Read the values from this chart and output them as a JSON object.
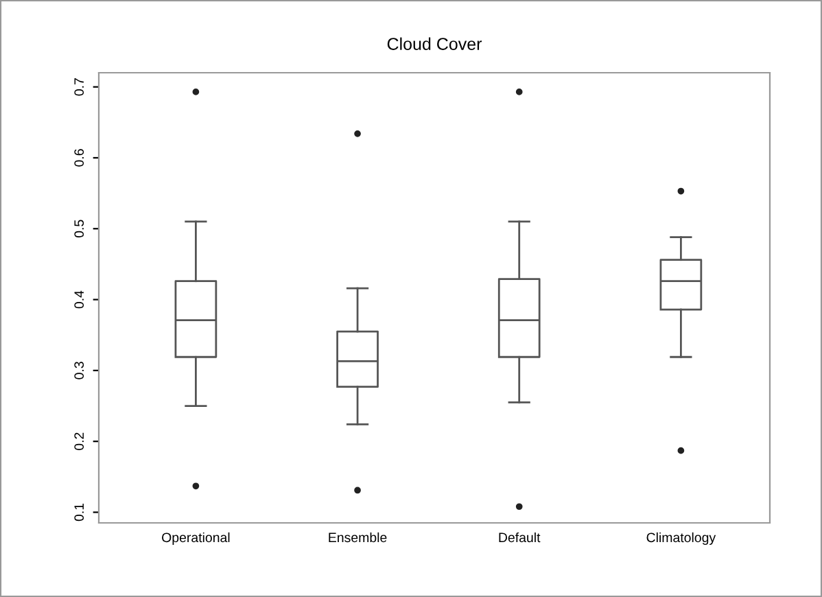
{
  "chart_data": {
    "type": "box",
    "title": "Cloud Cover",
    "categories": [
      "Operational",
      "Ensemble",
      "Default",
      "Climatology"
    ],
    "boxes": [
      {
        "low": 0.25,
        "q1": 0.319,
        "median": 0.371,
        "q3": 0.426,
        "high": 0.51,
        "outliers": [
          0.693,
          0.137
        ]
      },
      {
        "low": 0.224,
        "q1": 0.277,
        "median": 0.313,
        "q3": 0.355,
        "high": 0.416,
        "outliers": [
          0.634,
          0.131
        ]
      },
      {
        "low": 0.255,
        "q1": 0.319,
        "median": 0.371,
        "q3": 0.429,
        "high": 0.51,
        "outliers": [
          0.693,
          0.108
        ]
      },
      {
        "low": 0.319,
        "q1": 0.386,
        "median": 0.426,
        "q3": 0.456,
        "high": 0.488,
        "outliers": [
          0.553,
          0.187
        ]
      }
    ],
    "color": "#555555",
    "ylim": [
      0.085,
      0.72
    ],
    "yticks": [
      0.1,
      0.2,
      0.3,
      0.4,
      0.5,
      0.6,
      0.7
    ],
    "grid": false,
    "marker": "circle"
  }
}
